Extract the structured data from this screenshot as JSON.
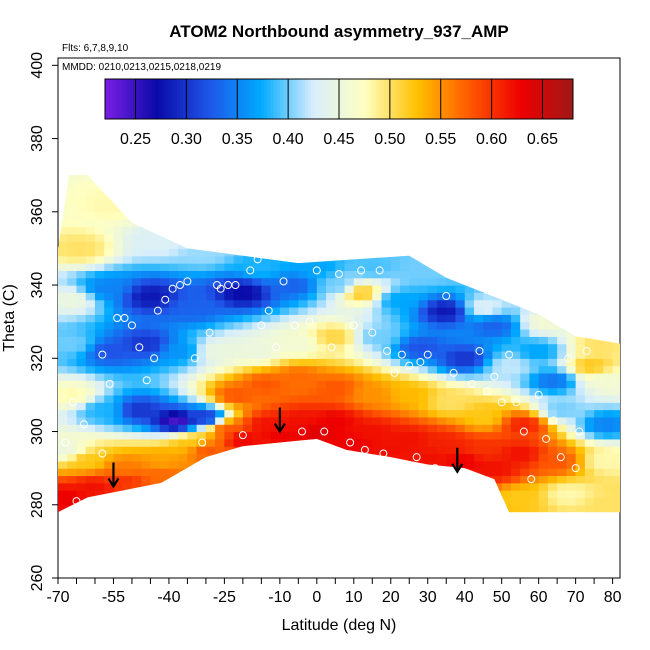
{
  "chart_data": {
    "type": "heatmap",
    "title": "ATOM2 Northbound asymmetry_937_AMP",
    "flights_label": "Flts: 6,7,8,9,10",
    "dates_label": "MMDD: 0210,0213,0215,0218,0219",
    "xlabel": "Latitude (deg N)",
    "ylabel": "Theta (C)",
    "xlim": [
      -70,
      82
    ],
    "ylim": [
      260,
      402
    ],
    "x_ticks": [
      -70,
      -55,
      -40,
      -25,
      -10,
      0,
      10,
      20,
      30,
      40,
      50,
      60,
      70,
      80
    ],
    "x_tick_labels": [
      "-70",
      "-55",
      "-40",
      "-25",
      "-10",
      "0",
      "10",
      "20",
      "30",
      "40",
      "50",
      "60",
      "70",
      "80"
    ],
    "x_minor_ticks": [
      -65,
      -60,
      -50,
      -45,
      -35,
      -30,
      -20,
      -15,
      -5,
      5,
      15,
      25,
      35,
      45,
      55,
      65,
      75
    ],
    "y_ticks": [
      260,
      280,
      300,
      320,
      340,
      360,
      380,
      400
    ],
    "y_tick_labels": [
      "260",
      "280",
      "300",
      "320",
      "340",
      "360",
      "380",
      "400"
    ],
    "colorbar": {
      "range": [
        0.22,
        0.68
      ],
      "ticks": [
        0.25,
        0.3,
        0.35,
        0.4,
        0.45,
        0.5,
        0.55,
        0.6,
        0.65
      ],
      "tick_labels": [
        "0.25",
        "0.30",
        "0.35",
        "0.40",
        "0.45",
        "0.50",
        "0.55",
        "0.60",
        "0.65"
      ],
      "colors": [
        "#7b1fe6",
        "#0a0aa8",
        "#1f55e8",
        "#00aaff",
        "#d8eefc",
        "#ffffc0",
        "#ffc000",
        "#ff5a00",
        "#ee0000",
        "#a01818"
      ]
    },
    "domain_top": [
      [
        -70,
        350
      ],
      [
        -67,
        370
      ],
      [
        -62,
        370
      ],
      [
        -50,
        357
      ],
      [
        -35,
        350
      ],
      [
        -20,
        348
      ],
      [
        -5,
        346
      ],
      [
        10,
        347
      ],
      [
        25,
        348
      ],
      [
        35,
        342
      ],
      [
        50,
        336
      ],
      [
        60,
        332
      ],
      [
        70,
        326
      ],
      [
        82,
        324
      ]
    ],
    "domain_bottom": [
      [
        -70,
        278
      ],
      [
        -62,
        282
      ],
      [
        -52,
        284
      ],
      [
        -42,
        286
      ],
      [
        -30,
        293
      ],
      [
        -20,
        296
      ],
      [
        -10,
        297
      ],
      [
        0,
        298
      ],
      [
        8,
        295
      ],
      [
        20,
        293
      ],
      [
        30,
        291
      ],
      [
        40,
        290
      ],
      [
        48,
        287
      ],
      [
        52,
        278
      ],
      [
        82,
        278
      ]
    ],
    "field_nodes": [
      [
        -64,
        350,
        0.5
      ],
      [
        -55,
        362,
        0.48
      ],
      [
        -42,
        352,
        0.43
      ],
      [
        -30,
        349,
        0.41
      ],
      [
        -15,
        345,
        0.38
      ],
      [
        0,
        345,
        0.37
      ],
      [
        15,
        345,
        0.39
      ],
      [
        30,
        344,
        0.4
      ],
      [
        45,
        334,
        0.43
      ],
      [
        62,
        330,
        0.46
      ],
      [
        76,
        324,
        0.5
      ],
      [
        -66,
        336,
        0.45
      ],
      [
        -57,
        339,
        0.35
      ],
      [
        -45,
        337,
        0.28
      ],
      [
        -33,
        334,
        0.33
      ],
      [
        -20,
        338,
        0.27
      ],
      [
        -6,
        340,
        0.33
      ],
      [
        6,
        340,
        0.4
      ],
      [
        12,
        338,
        0.52
      ],
      [
        22,
        336,
        0.37
      ],
      [
        35,
        333,
        0.28
      ],
      [
        48,
        329,
        0.33
      ],
      [
        60,
        322,
        0.37
      ],
      [
        74,
        318,
        0.52
      ],
      [
        -66,
        324,
        0.4
      ],
      [
        -56,
        322,
        0.32
      ],
      [
        -46,
        324,
        0.3
      ],
      [
        -37,
        322,
        0.36
      ],
      [
        -27,
        322,
        0.45
      ],
      [
        -16,
        322,
        0.45
      ],
      [
        -5,
        324,
        0.46
      ],
      [
        5,
        326,
        0.51
      ],
      [
        16,
        326,
        0.4
      ],
      [
        28,
        323,
        0.32
      ],
      [
        40,
        320,
        0.3
      ],
      [
        52,
        318,
        0.42
      ],
      [
        64,
        314,
        0.34
      ],
      [
        78,
        314,
        0.46
      ],
      [
        -66,
        310,
        0.48
      ],
      [
        -58,
        306,
        0.38
      ],
      [
        -48,
        306,
        0.3
      ],
      [
        -38,
        303,
        0.24
      ],
      [
        -30,
        304,
        0.3
      ],
      [
        -22,
        310,
        0.58
      ],
      [
        -14,
        313,
        0.58
      ],
      [
        -5,
        315,
        0.57
      ],
      [
        5,
        312,
        0.58
      ],
      [
        15,
        310,
        0.55
      ],
      [
        25,
        310,
        0.53
      ],
      [
        36,
        308,
        0.5
      ],
      [
        45,
        304,
        0.52
      ],
      [
        56,
        302,
        0.61
      ],
      [
        66,
        306,
        0.4
      ],
      [
        78,
        302,
        0.35
      ],
      [
        -68,
        295,
        0.45
      ],
      [
        -62,
        292,
        0.52
      ],
      [
        -52,
        290,
        0.56
      ],
      [
        -42,
        292,
        0.54
      ],
      [
        -34,
        297,
        0.52
      ],
      [
        -24,
        301,
        0.58
      ],
      [
        -14,
        302,
        0.62
      ],
      [
        -5,
        303,
        0.62
      ],
      [
        5,
        303,
        0.63
      ],
      [
        15,
        300,
        0.62
      ],
      [
        25,
        298,
        0.62
      ],
      [
        35,
        297,
        0.61
      ],
      [
        45,
        295,
        0.6
      ],
      [
        55,
        294,
        0.62
      ],
      [
        65,
        292,
        0.58
      ],
      [
        78,
        292,
        0.48
      ],
      [
        -68,
        282,
        0.63
      ],
      [
        -60,
        285,
        0.62
      ],
      [
        -52,
        287,
        0.6
      ],
      [
        -42,
        289,
        0.57
      ],
      [
        -30,
        295,
        0.58
      ],
      [
        -20,
        298,
        0.63
      ],
      [
        -10,
        299,
        0.63
      ],
      [
        0,
        300,
        0.64
      ],
      [
        10,
        297,
        0.63
      ],
      [
        20,
        295,
        0.62
      ],
      [
        30,
        293,
        0.62
      ],
      [
        40,
        292,
        0.63
      ],
      [
        48,
        290,
        0.62
      ],
      [
        55,
        282,
        0.52
      ],
      [
        68,
        283,
        0.48
      ],
      [
        78,
        280,
        0.5
      ]
    ],
    "observations": [
      [
        -66,
        308
      ],
      [
        -63,
        302
      ],
      [
        -68,
        297
      ],
      [
        -65,
        281
      ],
      [
        -58,
        294
      ],
      [
        -58,
        321
      ],
      [
        -56,
        313
      ],
      [
        -54,
        331
      ],
      [
        -52,
        331
      ],
      [
        -50,
        329
      ],
      [
        -48,
        323
      ],
      [
        -46,
        314
      ],
      [
        -44,
        320
      ],
      [
        -43,
        333
      ],
      [
        -41,
        336
      ],
      [
        -39,
        339
      ],
      [
        -37,
        340
      ],
      [
        -35,
        341
      ],
      [
        -33,
        320
      ],
      [
        -31,
        297
      ],
      [
        -29,
        327
      ],
      [
        -27,
        340
      ],
      [
        -26,
        339
      ],
      [
        -24,
        340
      ],
      [
        -22,
        340
      ],
      [
        -20,
        299
      ],
      [
        -18,
        344
      ],
      [
        -16,
        347
      ],
      [
        -15,
        329
      ],
      [
        -13,
        333
      ],
      [
        -11,
        323
      ],
      [
        -9,
        341
      ],
      [
        -6,
        329
      ],
      [
        -4,
        300
      ],
      [
        -2,
        330
      ],
      [
        0,
        344
      ],
      [
        2,
        300
      ],
      [
        4,
        323
      ],
      [
        6,
        343
      ],
      [
        9,
        297
      ],
      [
        10,
        329
      ],
      [
        12,
        344
      ],
      [
        13,
        295
      ],
      [
        15,
        327
      ],
      [
        17,
        344
      ],
      [
        18,
        294
      ],
      [
        19,
        322
      ],
      [
        21,
        316
      ],
      [
        23,
        321
      ],
      [
        25,
        318
      ],
      [
        27,
        293
      ],
      [
        28,
        319
      ],
      [
        30,
        321
      ],
      [
        32,
        290
      ],
      [
        35,
        337
      ],
      [
        37,
        316
      ],
      [
        39,
        344
      ],
      [
        42,
        313
      ],
      [
        44,
        322
      ],
      [
        46,
        311
      ],
      [
        48,
        315
      ],
      [
        50,
        308
      ],
      [
        52,
        321
      ],
      [
        54,
        308
      ],
      [
        56,
        300
      ],
      [
        58,
        287
      ],
      [
        60,
        310
      ],
      [
        62,
        298
      ],
      [
        64,
        303
      ],
      [
        66,
        293
      ],
      [
        68,
        320
      ],
      [
        70,
        290
      ],
      [
        71,
        300
      ],
      [
        73,
        322
      ]
    ],
    "arrows": [
      [
        -55,
        285
      ],
      [
        -10,
        300
      ],
      [
        38,
        289
      ]
    ]
  }
}
